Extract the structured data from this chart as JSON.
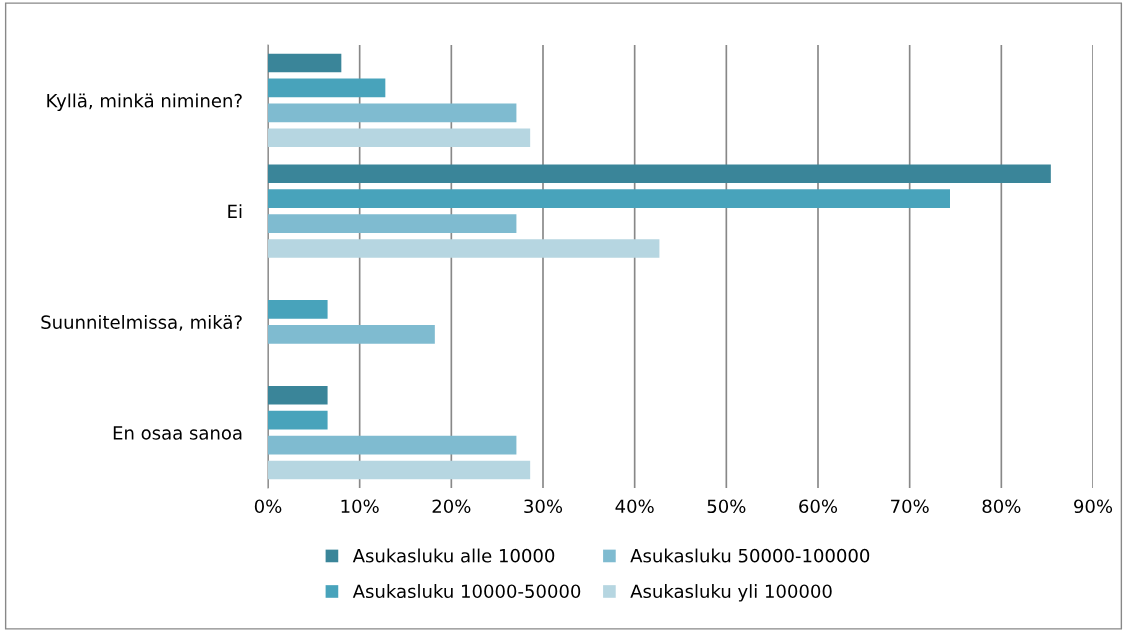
{
  "chart_data": {
    "type": "bar",
    "orientation": "horizontal",
    "categories": [
      "Kyllä, minkä niminen?",
      "Ei",
      "Suunnitelmissa, mikä?",
      "En osaa sanoa"
    ],
    "series": [
      {
        "name": "Asukasluku alle 10000",
        "color": "#3a8599",
        "values": [
          8.0,
          85.4,
          0,
          6.5
        ]
      },
      {
        "name": "Asukasluku 10000-50000",
        "color": "#48a3bb",
        "values": [
          12.8,
          74.4,
          6.5,
          6.5
        ]
      },
      {
        "name": "Asukasluku 50000-100000",
        "color": "#7fbbd0",
        "values": [
          27.1,
          27.1,
          18.2,
          27.1
        ]
      },
      {
        "name": "Asukasluku yli 100000",
        "color": "#b6d6e1",
        "values": [
          28.6,
          42.7,
          0,
          28.6
        ]
      }
    ],
    "xlim": [
      0,
      90
    ],
    "xticks": [
      {
        "value": 0,
        "label": "0%"
      },
      {
        "value": 10,
        "label": "10%"
      },
      {
        "value": 20,
        "label": "20%"
      },
      {
        "value": 30,
        "label": "30%"
      },
      {
        "value": 40,
        "label": "40%"
      },
      {
        "value": 50,
        "label": "50%"
      },
      {
        "value": 60,
        "label": "60%"
      },
      {
        "value": 70,
        "label": "70%"
      },
      {
        "value": 80,
        "label": "80%"
      },
      {
        "value": 90,
        "label": "90%"
      }
    ],
    "grid": "x",
    "legend": "bottom"
  }
}
